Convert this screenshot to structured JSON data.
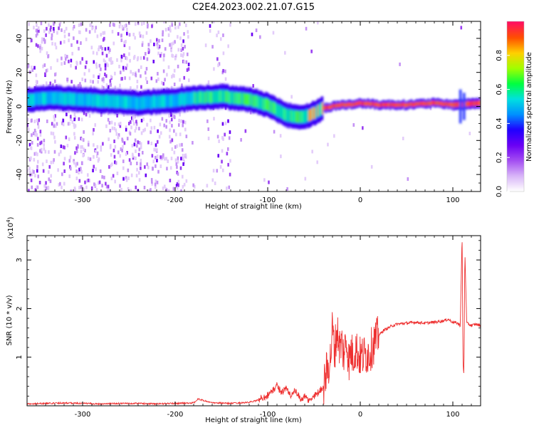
{
  "title": "C2E4.2023.002.21.07.G15",
  "chart_data": [
    {
      "type": "heatmap",
      "xlabel": "Height of straight line (km)",
      "ylabel": "Frequency (Hz)",
      "xlim": [
        -360,
        130
      ],
      "ylim": [
        -50,
        50
      ],
      "xticks": [
        "-300",
        "-200",
        "-100",
        "0",
        "100"
      ],
      "yticks": [
        "40",
        "20",
        "0",
        "-20",
        "-40"
      ],
      "colorbar": {
        "label": "Normalized spectral amplitude",
        "range": [
          0.0,
          1.0
        ],
        "ticks": [
          "0.0",
          "0.2",
          "0.4",
          "0.6",
          "0.8"
        ],
        "colors": [
          "#ffffff",
          "#d8b4f8",
          "#a34df2",
          "#6a00f4",
          "#2000ff",
          "#0090ff",
          "#00e0e0",
          "#00ff40",
          "#a0ff00",
          "#ffd000",
          "#ff5000",
          "#ff1060"
        ]
      },
      "ridge": {
        "x": [
          -360,
          -330,
          -300,
          -270,
          -240,
          -210,
          -180,
          -150,
          -120,
          -100,
          -90,
          -80,
          -70,
          -60,
          -50,
          -40,
          -30,
          -20,
          -10,
          0,
          20,
          50,
          80,
          100,
          130
        ],
        "y": [
          4,
          5,
          4,
          3,
          2,
          3,
          5,
          6,
          4,
          1,
          -2,
          -5,
          -6,
          -6,
          -4,
          -1,
          0,
          1,
          1,
          2,
          1,
          1,
          2,
          1,
          2
        ]
      },
      "grid": false
    },
    {
      "type": "line",
      "xlabel": "Height of straight line (km)",
      "ylabel": "SNR (10 * v/v)",
      "scale_note": "(x10",
      "scale_exp": "4",
      "scale_close": ")",
      "xlim": [
        -360,
        130
      ],
      "ylim": [
        0,
        3.5
      ],
      "xticks": [
        "-300",
        "-200",
        "-100",
        "0",
        "100"
      ],
      "yticks": [
        "1",
        "2",
        "3"
      ],
      "series": [
        {
          "color": "#ee3030",
          "x": [
            -360,
            -340,
            -320,
            -300,
            -280,
            -260,
            -240,
            -220,
            -200,
            -180,
            -175,
            -160,
            -140,
            -120,
            -110,
            -100,
            -95,
            -90,
            -85,
            -80,
            -75,
            -70,
            -65,
            -60,
            -55,
            -50,
            -45,
            -40,
            -35,
            -32,
            -30,
            -28,
            -25,
            -22,
            -20,
            -18,
            -15,
            -12,
            -10,
            -8,
            -5,
            -2,
            0,
            5,
            10,
            15,
            20,
            25,
            30,
            35,
            40,
            50,
            60,
            70,
            80,
            90,
            95,
            100,
            105,
            108,
            110,
            111,
            112,
            113,
            115,
            120,
            125,
            130
          ],
          "y": [
            0.04,
            0.05,
            0.06,
            0.05,
            0.04,
            0.05,
            0.05,
            0.04,
            0.05,
            0.06,
            0.14,
            0.06,
            0.05,
            0.07,
            0.12,
            0.22,
            0.3,
            0.42,
            0.28,
            0.35,
            0.22,
            0.3,
            0.14,
            0.18,
            0.1,
            0.2,
            0.28,
            0.4,
            0.8,
            1.0,
            1.65,
            1.1,
            1.55,
            1.2,
            1.3,
            1.05,
            1.35,
            0.9,
            1.15,
            1.0,
            1.2,
            1.05,
            1.0,
            1.05,
            1.1,
            1.3,
            1.45,
            1.55,
            1.6,
            1.65,
            1.68,
            1.7,
            1.72,
            1.7,
            1.72,
            1.75,
            1.78,
            1.72,
            1.7,
            1.65,
            3.5,
            0.9,
            0.6,
            3.2,
            1.7,
            1.65,
            1.68,
            1.65
          ]
        }
      ],
      "grid": false
    }
  ]
}
